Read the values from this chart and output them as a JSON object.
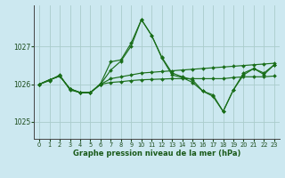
{
  "xlabel": "Graphe pression niveau de la mer (hPa)",
  "bg_color": "#cce8f0",
  "grid_color_v": "#aacccc",
  "grid_color_h": "#aacccc",
  "line_color": "#1a6e1a",
  "xlim": [
    -0.5,
    23.5
  ],
  "ylim": [
    1024.55,
    1028.1
  ],
  "yticks": [
    1025,
    1026,
    1027
  ],
  "xticks": [
    0,
    1,
    2,
    3,
    4,
    5,
    6,
    7,
    8,
    9,
    10,
    11,
    12,
    13,
    14,
    15,
    16,
    17,
    18,
    19,
    20,
    21,
    22,
    23
  ],
  "series": [
    [
      1026.0,
      1026.1,
      1026.25,
      1025.85,
      1025.78,
      1025.78,
      1026.02,
      1026.6,
      1026.65,
      1027.1,
      1027.72,
      1027.3,
      1026.7,
      1026.25,
      1026.18,
      1026.05,
      1025.82,
      1025.72,
      1025.28,
      1025.85,
      1026.25,
      1026.42,
      1026.3,
      1026.52
    ],
    [
      1026.0,
      1026.12,
      1026.22,
      1025.88,
      1025.78,
      1025.78,
      1026.0,
      1026.05,
      1026.07,
      1026.1,
      1026.12,
      1026.13,
      1026.14,
      1026.15,
      1026.15,
      1026.15,
      1026.15,
      1026.15,
      1026.15,
      1026.18,
      1026.2,
      1026.2,
      1026.2,
      1026.22
    ],
    [
      1026.0,
      1026.12,
      1026.22,
      1025.88,
      1025.78,
      1025.78,
      1026.0,
      1026.15,
      1026.2,
      1026.25,
      1026.3,
      1026.32,
      1026.34,
      1026.36,
      1026.38,
      1026.4,
      1026.42,
      1026.44,
      1026.46,
      1026.48,
      1026.5,
      1026.52,
      1026.54,
      1026.56
    ],
    [
      1026.0,
      1026.12,
      1026.22,
      1025.88,
      1025.78,
      1025.78,
      1026.0,
      1026.38,
      1026.62,
      1027.02,
      1027.72,
      1027.3,
      1026.72,
      1026.3,
      1026.2,
      1026.12,
      1025.82,
      1025.68,
      1025.28,
      1025.85,
      1026.3,
      1026.42,
      1026.26,
      1026.52
    ]
  ]
}
